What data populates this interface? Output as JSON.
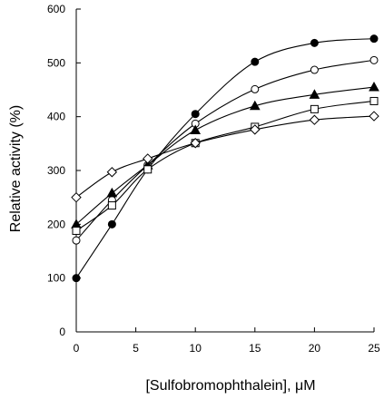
{
  "chart_data": {
    "type": "line",
    "xlabel": "[Sulfobromophthalein], μM",
    "ylabel": "Relative activity (%)",
    "xlim": [
      0,
      25
    ],
    "ylim": [
      0,
      600
    ],
    "x_ticks": [
      0,
      5,
      10,
      15,
      20,
      25
    ],
    "y_ticks": [
      0,
      100,
      200,
      300,
      400,
      500,
      600
    ],
    "grid": false,
    "legend": "none",
    "x": [
      0,
      3,
      6,
      10,
      15,
      20,
      25
    ],
    "series": [
      {
        "marker": "filled-circle",
        "color": "#000000",
        "values": [
          100,
          200,
          302,
          405,
          502,
          537,
          545
        ]
      },
      {
        "marker": "open-circle",
        "color": "#000000",
        "values": [
          170,
          245,
          310,
          387,
          451,
          487,
          505
        ]
      },
      {
        "marker": "filled-triangle",
        "color": "#000000",
        "values": [
          200,
          258,
          310,
          375,
          420,
          441,
          455
        ]
      },
      {
        "marker": "open-square",
        "color": "#000000",
        "values": [
          188,
          235,
          302,
          351,
          381,
          414,
          429
        ]
      },
      {
        "marker": "open-diamond",
        "color": "#000000",
        "values": [
          250,
          297,
          322,
          351,
          376,
          394,
          401
        ]
      }
    ]
  }
}
